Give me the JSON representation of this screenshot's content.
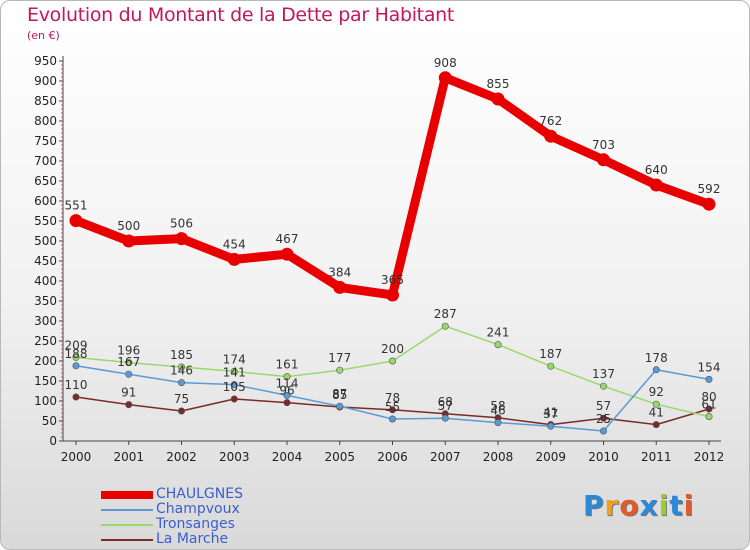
{
  "title": "Evolution du Montant de la Dette par Habitant",
  "subtitle": "(en €)",
  "logo": {
    "text": "Proxiti",
    "colors": [
      "#2e88d8",
      "#f0a020",
      "#e05a2a",
      "#2e88d8",
      "#9acd32",
      "#2e88d8",
      "#e05a2a"
    ]
  },
  "chart_data": {
    "type": "line",
    "title": "Evolution du Montant de la Dette par Habitant",
    "subtitle": "(en €)",
    "xlabel": "",
    "ylabel": "",
    "x": [
      "2000",
      "2001",
      "2002",
      "2003",
      "2004",
      "2005",
      "2006",
      "2007",
      "2008",
      "2009",
      "2010",
      "2011",
      "2012"
    ],
    "ylim": [
      0,
      950
    ],
    "yticks": [
      0,
      50,
      100,
      150,
      200,
      250,
      300,
      350,
      400,
      450,
      500,
      550,
      600,
      650,
      700,
      750,
      800,
      850,
      900,
      950
    ],
    "grid": false,
    "legend_position": "bottom-left",
    "series": [
      {
        "name": "CHAULGNES",
        "color": "#e80000",
        "values": [
          551,
          500,
          506,
          454,
          467,
          384,
          365,
          908,
          855,
          762,
          703,
          640,
          592
        ],
        "labels": [
          "551",
          "500",
          "506",
          "454",
          "467",
          "384",
          "365",
          "908",
          "855",
          "762",
          "703",
          "640",
          "592"
        ]
      },
      {
        "name": "Champvoux",
        "color": "#5a9bd5",
        "values": [
          188,
          167,
          146,
          141,
          114,
          87,
          55,
          57,
          46,
          37,
          25,
          178,
          154
        ],
        "labels": [
          "188",
          "167",
          "146",
          "141",
          "114",
          "87",
          "55",
          "57",
          "46",
          "37",
          "25",
          "178",
          "154"
        ]
      },
      {
        "name": "Tronsanges",
        "color": "#99d96b",
        "values": [
          209,
          196,
          185,
          174,
          161,
          177,
          200,
          287,
          241,
          187,
          137,
          92,
          61
        ],
        "labels": [
          "209",
          "196",
          "185",
          "174",
          "161",
          "177",
          "200",
          "287",
          "241",
          "187",
          "137",
          "92",
          "61"
        ]
      },
      {
        "name": "La Marche",
        "color": "#7a2a2a",
        "values": [
          110,
          91,
          75,
          105,
          96,
          85,
          78,
          68,
          58,
          41,
          57,
          41,
          80
        ],
        "labels": [
          "110",
          "91",
          "75",
          "105",
          "96",
          "85",
          "78",
          "68",
          "58",
          "41",
          "57",
          "41",
          "80"
        ]
      }
    ]
  }
}
